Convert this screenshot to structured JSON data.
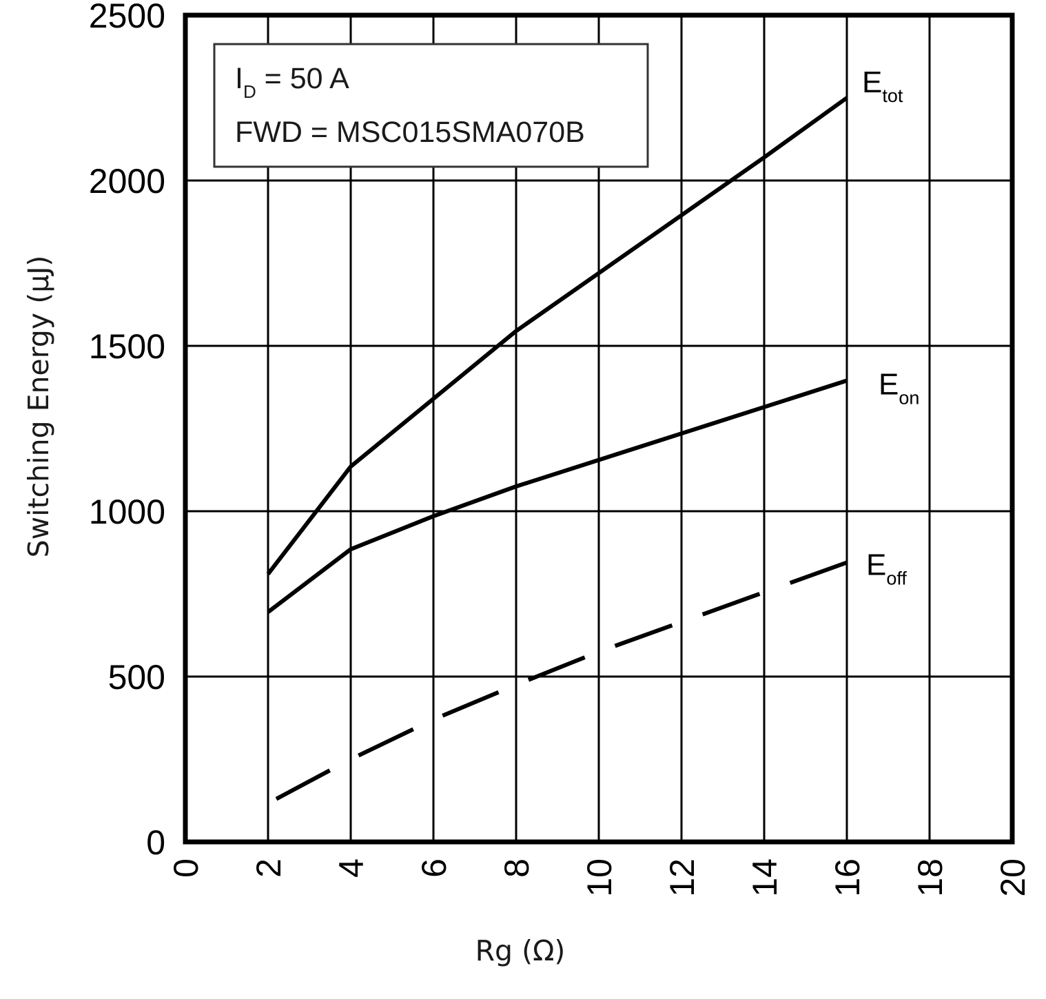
{
  "chart_data": {
    "type": "line",
    "title": "",
    "xlabel": "Rg (Ω)",
    "ylabel": "Switching Energy (µJ)",
    "xlim": [
      0,
      20
    ],
    "ylim": [
      0,
      2500
    ],
    "x_ticks": [
      "0",
      "2",
      "4",
      "6",
      "8",
      "10",
      "12",
      "14",
      "16",
      "18",
      "20"
    ],
    "y_ticks": [
      "0",
      "500",
      "1000",
      "1500",
      "2000",
      "2500"
    ],
    "grid": true,
    "legend": "none (inline labels at right end of each line)",
    "annotation": {
      "line1": {
        "main": "I",
        "sub": "D",
        "rest": " = 50 A"
      },
      "line2": "FWD = MSC015SMA070B"
    },
    "series": [
      {
        "name": "Etot",
        "label_main": "E",
        "label_sub": "tot",
        "style": "solid",
        "points": [
          [
            2,
            810
          ],
          [
            4,
            1135
          ],
          [
            6,
            1340
          ],
          [
            8,
            1545
          ],
          [
            10,
            1720
          ],
          [
            12,
            1895
          ],
          [
            14,
            2070
          ],
          [
            16,
            2250
          ]
        ]
      },
      {
        "name": "Eon",
        "label_main": "E",
        "label_sub": "on",
        "style": "solid",
        "points": [
          [
            2,
            695
          ],
          [
            4,
            885
          ],
          [
            6,
            985
          ],
          [
            8,
            1075
          ],
          [
            10,
            1155
          ],
          [
            12,
            1235
          ],
          [
            14,
            1315
          ],
          [
            16,
            1395
          ]
        ]
      },
      {
        "name": "Eoff",
        "label_main": "E",
        "label_sub": "off",
        "style": "dashed",
        "points": [
          [
            2.2,
            130
          ],
          [
            4,
            250
          ],
          [
            6,
            370
          ],
          [
            8,
            475
          ],
          [
            10,
            575
          ],
          [
            12,
            665
          ],
          [
            14,
            755
          ],
          [
            16,
            845
          ]
        ]
      }
    ]
  }
}
